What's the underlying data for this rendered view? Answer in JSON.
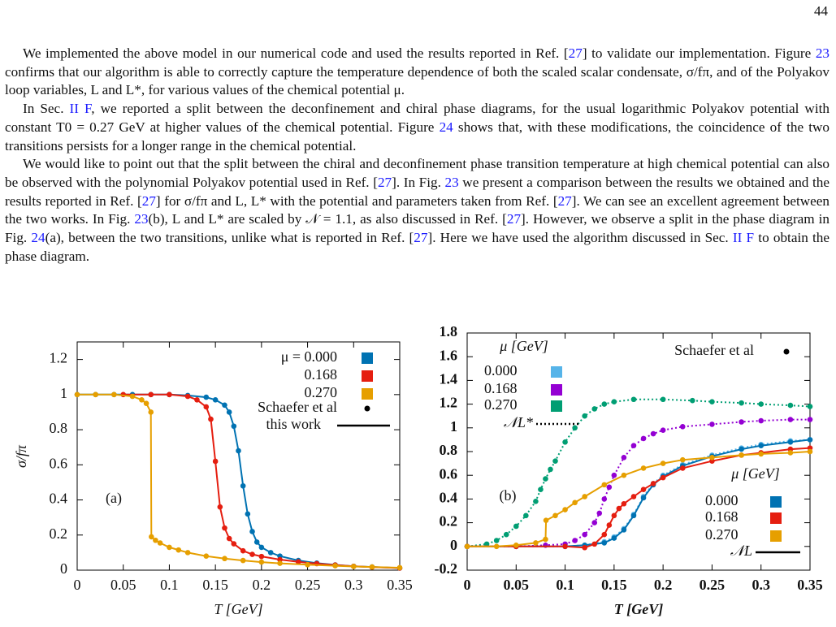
{
  "page_number": "44",
  "paragraphs": [
    [
      "We implemented the above model in our numerical code and used the results reported in Ref. [",
      {
        "link": "27"
      },
      "] to validate our implementation. Figure ",
      {
        "link": "23"
      },
      " confirms that our algorithm is able to correctly capture the temperature dependence of both the scaled scalar condensate, σ/fπ, and of the Polyakov loop variables, L and L*, for various values of the chemical potential μ."
    ],
    [
      "In Sec. ",
      {
        "link": "II F"
      },
      ", we reported a split between the deconfinement and chiral phase diagrams, for the usual logarithmic Polyakov potential with constant T0 = 0.27 GeV at higher values of the chemical potential. Figure ",
      {
        "link": "24"
      },
      " shows that, with these modifications, the coincidence of the two transitions persists for a longer range in the chemical potential."
    ],
    [
      "We would like to point out that the split between the chiral and deconfinement phase transition temperature at high chemical potential can also be observed with the polynomial Polyakov potential used in Ref. [",
      {
        "link": "27"
      },
      "]. In Fig. ",
      {
        "link": "23"
      },
      " we present a comparison between the results we obtained and the results reported in Ref. [",
      {
        "link": "27"
      },
      "] for σ/fπ and L, L* with the potential and parameters taken from Ref. [",
      {
        "link": "27"
      },
      "]. We can see an excellent agreement between the two works. In Fig. ",
      {
        "link": "23"
      },
      "(b), L and L* are scaled by 𝒩 = 1.1, as also discussed in Ref. [",
      {
        "link": "27"
      },
      "]. However, we observe a split in the phase diagram in Fig. ",
      {
        "link": "24"
      },
      "(a), between the two transitions, unlike what is reported in Ref. [",
      {
        "link": "27"
      },
      "]. Here we have used the algorithm discussed in Sec. ",
      {
        "link": "II F"
      },
      " to obtain the phase diagram."
    ]
  ],
  "chart_data": [
    {
      "type": "line",
      "panel_label": "(a)",
      "xlabel": "T [GeV]",
      "ylabel": "σ/fπ",
      "xlim": [
        0,
        0.35
      ],
      "xticks": [
        0,
        0.05,
        0.1,
        0.15,
        0.2,
        0.25,
        0.3,
        0.35
      ],
      "ylim": [
        0,
        1.3
      ],
      "yticks": [
        0,
        0.2,
        0.4,
        0.6,
        0.8,
        1,
        1.2
      ],
      "points_label": "Schaefer et al",
      "line_label": "this work",
      "groups": [
        {
          "dash": "solid",
          "series": [
            {
              "name": "μ = 0.000",
              "color": "#0072b2",
              "x": [
                0,
                0.02,
                0.04,
                0.06,
                0.08,
                0.1,
                0.12,
                0.14,
                0.15,
                0.16,
                0.165,
                0.17,
                0.175,
                0.18,
                0.185,
                0.19,
                0.195,
                0.2,
                0.21,
                0.22,
                0.24,
                0.26,
                0.28,
                0.3,
                0.32,
                0.35
              ],
              "values": [
                1,
                1,
                1,
                1,
                1,
                1,
                0.995,
                0.985,
                0.97,
                0.94,
                0.9,
                0.82,
                0.68,
                0.48,
                0.32,
                0.22,
                0.16,
                0.13,
                0.1,
                0.08,
                0.055,
                0.04,
                0.03,
                0.022,
                0.018,
                0.012
              ]
            },
            {
              "name": "0.168",
              "color": "#e51e10",
              "x": [
                0.05,
                0.08,
                0.1,
                0.12,
                0.13,
                0.14,
                0.145,
                0.15,
                0.155,
                0.16,
                0.165,
                0.17,
                0.18,
                0.19,
                0.2,
                0.22,
                0.24,
                0.26,
                0.28,
                0.3,
                0.32,
                0.35
              ],
              "values": [
                1,
                1,
                1,
                0.99,
                0.97,
                0.93,
                0.86,
                0.62,
                0.36,
                0.24,
                0.18,
                0.15,
                0.11,
                0.09,
                0.078,
                0.06,
                0.047,
                0.037,
                0.029,
                0.022,
                0.017,
                0.012
              ]
            },
            {
              "name": "0.270",
              "color": "#e69f00",
              "x": [
                0,
                0.02,
                0.04,
                0.06,
                0.07,
                0.075,
                0.08,
                0.0805,
                0.085,
                0.09,
                0.1,
                0.11,
                0.12,
                0.14,
                0.16,
                0.18,
                0.2,
                0.22,
                0.25,
                0.28,
                0.3,
                0.32,
                0.35
              ],
              "values": [
                1,
                1,
                1,
                0.99,
                0.97,
                0.95,
                0.9,
                0.19,
                0.17,
                0.155,
                0.13,
                0.115,
                0.1,
                0.08,
                0.066,
                0.055,
                0.046,
                0.039,
                0.031,
                0.025,
                0.021,
                0.018,
                0.014
              ]
            }
          ]
        }
      ]
    },
    {
      "type": "line",
      "panel_label": "(b)",
      "xlabel": "T [GeV]",
      "tick_font_weight": "bold",
      "xlim": [
        0,
        0.35
      ],
      "xticks": [
        0,
        0.05,
        0.1,
        0.15,
        0.2,
        0.25,
        0.3,
        0.35
      ],
      "ylim": [
        -0.2,
        1.8
      ],
      "yticks": [
        -0.2,
        0,
        0.2,
        0.4,
        0.6,
        0.8,
        1,
        1.2,
        1.4,
        1.6,
        1.8
      ],
      "points_label": "Schaefer et al",
      "groups": [
        {
          "title": "μ [GeV]",
          "line_label": "𝒩L*",
          "dash": "dot",
          "series": [
            {
              "name": "0.000",
              "color": "#56b4e9",
              "x": [
                0,
                0.05,
                0.1,
                0.12,
                0.14,
                0.15,
                0.16,
                0.17,
                0.18,
                0.19,
                0.2,
                0.22,
                0.25,
                0.28,
                0.3,
                0.33,
                0.35
              ],
              "values": [
                0,
                0,
                0,
                0.01,
                0.04,
                0.08,
                0.15,
                0.27,
                0.42,
                0.53,
                0.6,
                0.69,
                0.77,
                0.83,
                0.86,
                0.89,
                0.9
              ]
            },
            {
              "name": "0.168",
              "color": "#9400d3",
              "x": [
                0,
                0.05,
                0.08,
                0.1,
                0.11,
                0.12,
                0.13,
                0.135,
                0.14,
                0.145,
                0.15,
                0.16,
                0.17,
                0.18,
                0.19,
                0.2,
                0.22,
                0.25,
                0.28,
                0.3,
                0.33,
                0.35
              ],
              "values": [
                0,
                0,
                0.01,
                0.02,
                0.05,
                0.1,
                0.2,
                0.28,
                0.4,
                0.5,
                0.6,
                0.75,
                0.85,
                0.91,
                0.95,
                0.98,
                1.01,
                1.03,
                1.05,
                1.06,
                1.07,
                1.07
              ]
            },
            {
              "name": "0.270",
              "color": "#009e73",
              "x": [
                0,
                0.02,
                0.03,
                0.04,
                0.05,
                0.06,
                0.07,
                0.075,
                0.08,
                0.085,
                0.09,
                0.1,
                0.11,
                0.12,
                0.13,
                0.14,
                0.15,
                0.17,
                0.2,
                0.23,
                0.25,
                0.28,
                0.3,
                0.33,
                0.35
              ],
              "values": [
                0,
                0.02,
                0.05,
                0.1,
                0.17,
                0.26,
                0.38,
                0.48,
                0.57,
                0.65,
                0.72,
                0.88,
                1.0,
                1.1,
                1.16,
                1.2,
                1.22,
                1.24,
                1.24,
                1.23,
                1.22,
                1.21,
                1.2,
                1.19,
                1.18
              ]
            }
          ]
        },
        {
          "title": "μ [GeV]",
          "line_label": "𝒩L",
          "dash": "solid",
          "series": [
            {
              "name": "0.000",
              "color": "#0072b2",
              "x": [
                0,
                0.05,
                0.1,
                0.12,
                0.14,
                0.15,
                0.16,
                0.17,
                0.18,
                0.19,
                0.2,
                0.22,
                0.25,
                0.28,
                0.3,
                0.33,
                0.35
              ],
              "values": [
                0,
                0,
                0,
                0.01,
                0.03,
                0.07,
                0.14,
                0.26,
                0.41,
                0.52,
                0.59,
                0.68,
                0.76,
                0.82,
                0.85,
                0.88,
                0.9
              ]
            },
            {
              "name": "0.168",
              "color": "#e51e10",
              "x": [
                0,
                0.05,
                0.1,
                0.12,
                0.13,
                0.14,
                0.145,
                0.15,
                0.155,
                0.16,
                0.17,
                0.18,
                0.19,
                0.2,
                0.22,
                0.25,
                0.28,
                0.3,
                0.33,
                0.35
              ],
              "values": [
                0,
                0,
                0,
                -0.01,
                0.02,
                0.1,
                0.18,
                0.26,
                0.32,
                0.36,
                0.42,
                0.48,
                0.53,
                0.58,
                0.66,
                0.72,
                0.77,
                0.79,
                0.82,
                0.83
              ]
            },
            {
              "name": "0.270",
              "color": "#e69f00",
              "x": [
                0,
                0.03,
                0.05,
                0.07,
                0.08,
                0.0805,
                0.09,
                0.1,
                0.11,
                0.12,
                0.14,
                0.16,
                0.18,
                0.2,
                0.22,
                0.25,
                0.28,
                0.3,
                0.33,
                0.35
              ],
              "values": [
                0,
                0,
                0.01,
                0.03,
                0.06,
                0.22,
                0.26,
                0.31,
                0.37,
                0.42,
                0.52,
                0.6,
                0.66,
                0.7,
                0.73,
                0.75,
                0.77,
                0.78,
                0.79,
                0.8
              ]
            }
          ]
        }
      ]
    }
  ]
}
